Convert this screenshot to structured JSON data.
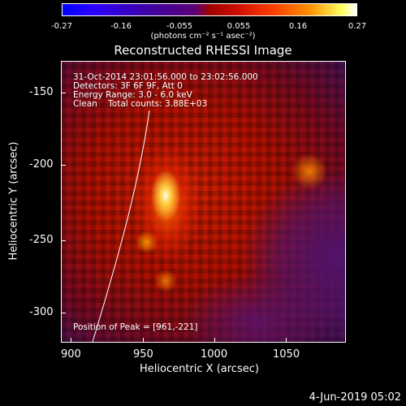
{
  "colorbar": {
    "ticks": [
      "-0.27",
      "-0.16",
      "-0.055",
      "0.055",
      "0.16",
      "0.27"
    ],
    "units": "(photons cm⁻² s⁻¹ asec⁻²)"
  },
  "title": "Reconstructed RHESSI Image",
  "info": {
    "time": "31-Oct-2014 23:01:56.000 to 23:02:56.000",
    "detectors": "Detectors: 3F 6F 9F, Att 0",
    "energy": "Energy Range: 3.0 - 6.0 keV",
    "clean": "Clean    Total counts: 3.88E+03",
    "peak": "Position of Peak = [961,-221]"
  },
  "axes": {
    "ylabel": "Heliocentric Y (arcsec)",
    "xlabel": "Heliocentric X (arcsec)",
    "yticks": [
      "-150",
      "-200",
      "-250",
      "-300"
    ],
    "xticks": [
      "900",
      "950",
      "1000",
      "1050"
    ]
  },
  "footer": {
    "date": "4-Jun-2019 05:02"
  }
}
